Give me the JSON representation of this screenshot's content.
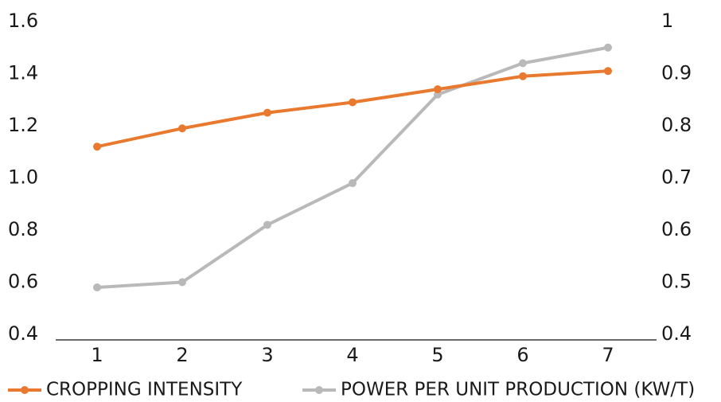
{
  "chart_data": {
    "type": "line",
    "title": "",
    "xlabel": "",
    "ylabel": "",
    "y2label": "",
    "categories": [
      "1",
      "2",
      "3",
      "4",
      "5",
      "6",
      "7"
    ],
    "ylim": [
      0.4,
      1.6
    ],
    "y2lim": [
      0.4,
      1.0
    ],
    "yticks": [
      "1.6",
      "1.4",
      "1.2",
      "1.0",
      "0.8",
      "0.6",
      "0.4"
    ],
    "y2ticks": [
      "1",
      "0.9",
      "0.8",
      "0.7",
      "0.6",
      "0.5",
      "0.4"
    ],
    "grid": false,
    "legend_position": "bottom",
    "series": [
      {
        "name": "CROPPING INTENSITY",
        "axis": "left",
        "color": "#e8792e",
        "values": [
          1.12,
          1.19,
          1.25,
          1.29,
          1.34,
          1.39,
          1.41
        ]
      },
      {
        "name": "POWER PER UNIT PRODUCTION (KW/T)",
        "axis": "right",
        "color": "#b9b9b9",
        "values": [
          0.49,
          0.5,
          0.61,
          0.69,
          0.86,
          0.92,
          0.95
        ]
      }
    ]
  }
}
